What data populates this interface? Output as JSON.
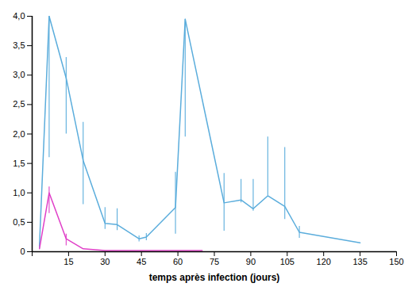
{
  "chart_data": {
    "type": "line",
    "xlabel": "temps après infection (jours)",
    "xlim": [
      0,
      150
    ],
    "ylim": [
      0,
      4.0
    ],
    "xticks": [
      {
        "value": 0,
        "label": null
      },
      15,
      30,
      45,
      60,
      75,
      90,
      105,
      120,
      135,
      150
    ],
    "yticks": [
      0,
      {
        "value": 0.5,
        "label": "0,5"
      },
      {
        "value": 1.0,
        "label": "1,0"
      },
      {
        "value": 1.5,
        "label": "1,5"
      },
      {
        "value": 2.0,
        "label": "2,0"
      },
      {
        "value": 2.5,
        "label": "2,5"
      },
      {
        "value": 3.0,
        "label": "3,0"
      },
      {
        "value": 3.5,
        "label": "3,5"
      },
      {
        "value": 4.0,
        "label": "4,0"
      }
    ],
    "grid": false,
    "series": [
      {
        "color": "#5baddc",
        "x": [
          3,
          7,
          14,
          21,
          30,
          35,
          44,
          47,
          59,
          63,
          79,
          86,
          91,
          97,
          104,
          110,
          135
        ],
        "values": [
          0.1,
          4.0,
          2.95,
          1.55,
          0.48,
          0.46,
          0.22,
          0.25,
          0.75,
          3.95,
          0.83,
          0.88,
          0.73,
          0.95,
          0.77,
          0.33,
          0.15
        ],
        "yerr_lo": [
          0.05,
          2.4,
          0.95,
          0.75,
          0.1,
          0.1,
          0.05,
          0.06,
          0.45,
          2.0,
          0.48,
          0.05,
          0.04,
          0.0,
          0.22,
          0.1,
          0.0
        ],
        "yerr_hi": [
          0.05,
          0.0,
          0.35,
          0.65,
          0.27,
          0.27,
          0.05,
          0.06,
          0.6,
          0.0,
          0.5,
          0.35,
          0.5,
          1.0,
          1.0,
          0.1,
          0.0
        ]
      },
      {
        "color": "#e040c8",
        "x": [
          3,
          7,
          14,
          21,
          30,
          35,
          44,
          47,
          59,
          63,
          70
        ],
        "values": [
          0.05,
          1.0,
          0.22,
          0.05,
          0.02,
          0.02,
          0.02,
          0.02,
          0.02,
          0.02,
          0.02
        ],
        "yerr_lo": [
          0.0,
          0.35,
          0.12,
          0.0,
          0.0,
          0.0,
          0.0,
          0.0,
          0.0,
          0.0,
          0.0
        ],
        "yerr_hi": [
          0.0,
          0.1,
          0.08,
          0.0,
          0.0,
          0.0,
          0.0,
          0.0,
          0.0,
          0.0,
          0.0
        ]
      }
    ]
  }
}
